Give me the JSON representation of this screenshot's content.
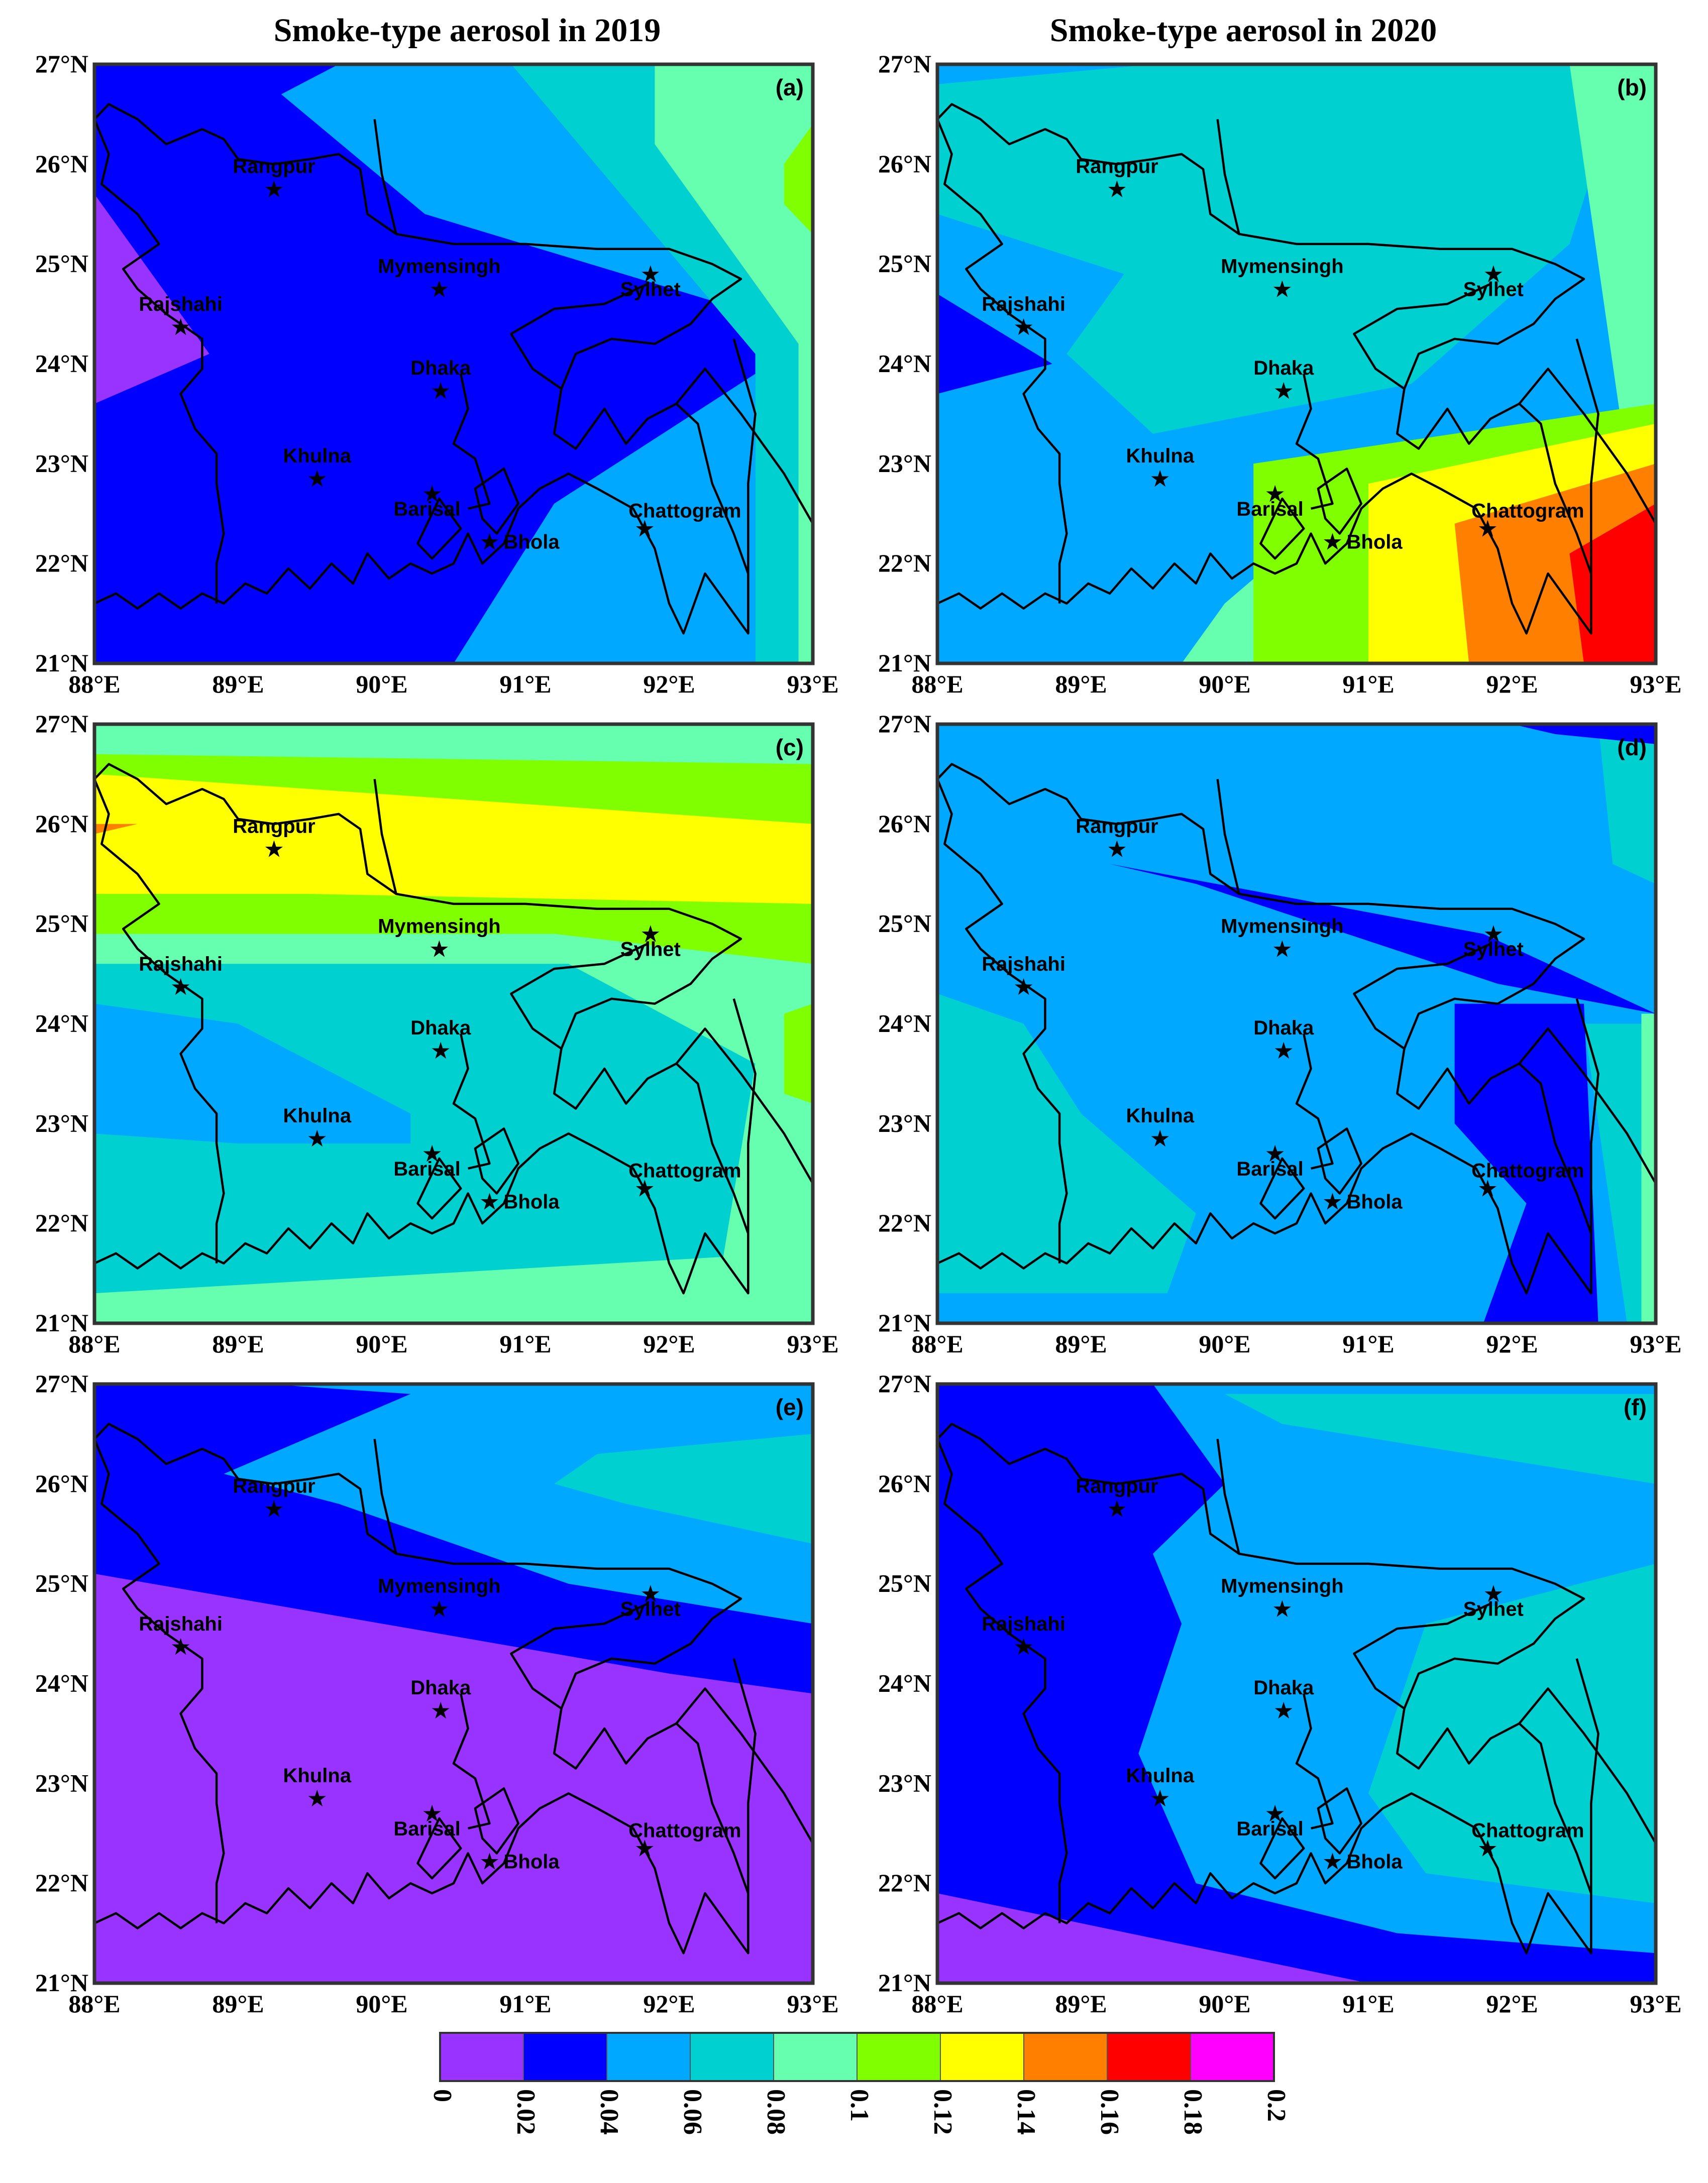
{
  "titles": {
    "col_2019": "Smoke-type aerosol in 2019",
    "col_2020": "Smoke-type aerosol in 2020"
  },
  "lat_ticks": [
    "21°N",
    "22°N",
    "23°N",
    "24°N",
    "25°N",
    "26°N",
    "27°N"
  ],
  "lon_ticks": [
    "88°E",
    "89°E",
    "90°E",
    "91°E",
    "92°E",
    "93°E"
  ],
  "extent": {
    "lon": [
      88,
      93
    ],
    "lat": [
      21,
      27
    ]
  },
  "cities": [
    {
      "name": "Rangpur",
      "lon": 89.25,
      "lat": 25.75
    },
    {
      "name": "Mymensingh",
      "lon": 90.4,
      "lat": 24.75
    },
    {
      "name": "Sylhet",
      "lon": 91.87,
      "lat": 24.9
    },
    {
      "name": "Rajshahi",
      "lon": 88.6,
      "lat": 24.37
    },
    {
      "name": "Dhaka",
      "lon": 90.41,
      "lat": 23.73
    },
    {
      "name": "Khulna",
      "lon": 89.55,
      "lat": 22.85
    },
    {
      "name": "Barisal",
      "lon": 90.35,
      "lat": 22.7
    },
    {
      "name": "Bhola",
      "lon": 90.75,
      "lat": 22.22
    },
    {
      "name": "Chattogram",
      "lon": 91.83,
      "lat": 22.35
    }
  ],
  "panels": [
    {
      "label": "(a)",
      "year": 2019,
      "background": "#0000ff",
      "layers": [
        {
          "color": "#00a8ff",
          "pts": [
            [
              89.7,
              27
            ],
            [
              90.9,
              27
            ],
            [
              92.6,
              24.1
            ],
            [
              92.6,
              21
            ],
            [
              90.5,
              21
            ],
            [
              91.2,
              22.6
            ],
            [
              92.6,
              23.9
            ],
            [
              92.6,
              24.5
            ],
            [
              90.3,
              25.5
            ],
            [
              89.3,
              26.7
            ]
          ]
        },
        {
          "color": "#00d0d0",
          "pts": [
            [
              90.9,
              27
            ],
            [
              91.9,
              27
            ],
            [
              92.3,
              25.4
            ],
            [
              92.9,
              24.2
            ],
            [
              92.9,
              21
            ],
            [
              92.6,
              21
            ],
            [
              92.6,
              24.1
            ]
          ]
        },
        {
          "color": "#66ffb0",
          "pts": [
            [
              91.9,
              27
            ],
            [
              93,
              27
            ],
            [
              93,
              21
            ],
            [
              92.9,
              21
            ],
            [
              92.9,
              24.2
            ],
            [
              92.3,
              25.4
            ],
            [
              91.9,
              26.2
            ]
          ]
        },
        {
          "color": "#80ff00",
          "pts": [
            [
              92.8,
              26
            ],
            [
              93,
              26.4
            ],
            [
              93,
              25.3
            ],
            [
              92.8,
              25.6
            ]
          ]
        },
        {
          "color": "#9933ff",
          "pts": [
            [
              88,
              25.7
            ],
            [
              88.8,
              24.1
            ],
            [
              88,
              23.6
            ]
          ]
        }
      ]
    },
    {
      "label": "(b)",
      "year": 2020,
      "background": "#00a8ff",
      "layers": [
        {
          "color": "#00d0d0",
          "pts": [
            [
              88,
              26.8
            ],
            [
              89.5,
              27
            ],
            [
              92.8,
              27
            ],
            [
              92.4,
              25.2
            ],
            [
              91.3,
              23.8
            ],
            [
              89.5,
              23.3
            ],
            [
              88.9,
              24.1
            ],
            [
              89.3,
              24.9
            ],
            [
              88,
              25.5
            ]
          ]
        },
        {
          "color": "#66ffb0",
          "pts": [
            [
              92.4,
              27
            ],
            [
              93,
              27
            ],
            [
              93,
              23.4
            ],
            [
              91.3,
              23.2
            ],
            [
              90,
              21.6
            ],
            [
              89.7,
              21
            ],
            [
              90.8,
              21
            ],
            [
              93,
              21
            ]
          ]
        },
        {
          "color": "#80ff00",
          "pts": [
            [
              90.2,
              23
            ],
            [
              93,
              23.6
            ],
            [
              93,
              22
            ],
            [
              91.3,
              21.6
            ],
            [
              91,
              21
            ],
            [
              90.2,
              21
            ]
          ]
        },
        {
          "color": "#ffff00",
          "pts": [
            [
              91,
              22.8
            ],
            [
              93,
              23.4
            ],
            [
              93,
              21
            ],
            [
              91,
              21
            ]
          ]
        },
        {
          "color": "#ff8000",
          "pts": [
            [
              91.6,
              22.4
            ],
            [
              93,
              23
            ],
            [
              93,
              21
            ],
            [
              91.7,
              21
            ]
          ]
        },
        {
          "color": "#ff0000",
          "pts": [
            [
              92.4,
              22.1
            ],
            [
              93,
              22.6
            ],
            [
              93,
              21
            ],
            [
              92.5,
              21
            ]
          ]
        },
        {
          "color": "#0000ff",
          "pts": [
            [
              88,
              24.7
            ],
            [
              88.8,
              24.0
            ],
            [
              88,
              23.7
            ]
          ]
        }
      ]
    },
    {
      "label": "(c)",
      "year": 2019,
      "background": "#00d0d0",
      "layers": [
        {
          "color": "#66ffb0",
          "pts": [
            [
              88,
              27
            ],
            [
              93,
              27
            ],
            [
              93,
              21
            ],
            [
              92.3,
              21
            ],
            [
              92.6,
              23.6
            ],
            [
              91.3,
              24.6
            ],
            [
              88,
              24.6
            ]
          ]
        },
        {
          "color": "#80ff00",
          "pts": [
            [
              88,
              26.7
            ],
            [
              93,
              26.6
            ],
            [
              93,
              24.6
            ],
            [
              91.2,
              24.9
            ],
            [
              88,
              24.9
            ]
          ]
        },
        {
          "color": "#ffff00",
          "pts": [
            [
              88,
              26.5
            ],
            [
              93,
              26.0
            ],
            [
              93,
              25.2
            ],
            [
              89.5,
              25.3
            ],
            [
              88,
              25.3
            ]
          ]
        },
        {
          "color": "#00a8ff",
          "pts": [
            [
              88,
              24.2
            ],
            [
              89,
              24.0
            ],
            [
              90.2,
              23.1
            ],
            [
              90.2,
              22.8
            ],
            [
              89,
              22.8
            ],
            [
              88,
              22.9
            ]
          ]
        },
        {
          "color": "#66ffb0",
          "pts": [
            [
              88,
              21.3
            ],
            [
              92.8,
              21.7
            ],
            [
              93,
              21.5
            ],
            [
              93,
              21
            ],
            [
              88,
              21
            ]
          ]
        },
        {
          "color": "#80ff00",
          "pts": [
            [
              92.8,
              23.3
            ],
            [
              93,
              23.2
            ],
            [
              93,
              24.2
            ],
            [
              92.8,
              24.1
            ]
          ]
        },
        {
          "color": "#ff8000",
          "pts": [
            [
              88,
              26
            ],
            [
              88.3,
              26
            ],
            [
              88,
              25.9
            ]
          ]
        }
      ]
    },
    {
      "label": "(d)",
      "year": 2020,
      "background": "#00a8ff",
      "layers": [
        {
          "color": "#00d0d0",
          "pts": [
            [
              88,
              24.3
            ],
            [
              88.6,
              24.0
            ],
            [
              89,
              23.1
            ],
            [
              89.8,
              22.1
            ],
            [
              89.6,
              21.3
            ],
            [
              88,
              21.3
            ]
          ]
        },
        {
          "color": "#00d0d0",
          "pts": [
            [
              92.6,
              27
            ],
            [
              93,
              27
            ],
            [
              93,
              25.4
            ],
            [
              92.7,
              25.6
            ]
          ]
        },
        {
          "color": "#00d0d0",
          "pts": [
            [
              92.5,
              24.0
            ],
            [
              93,
              24.0
            ],
            [
              93,
              21
            ],
            [
              92.8,
              21
            ],
            [
              92.6,
              23
            ]
          ]
        },
        {
          "color": "#0000ff",
          "pts": [
            [
              89.2,
              25.6
            ],
            [
              91.8,
              24.9
            ],
            [
              93,
              24.1
            ],
            [
              91.9,
              24.4
            ],
            [
              89.8,
              25.4
            ]
          ]
        },
        {
          "color": "#0000ff",
          "pts": [
            [
              91.6,
              24.2
            ],
            [
              92.5,
              24.2
            ],
            [
              92.6,
              21
            ],
            [
              91.8,
              21
            ],
            [
              92.1,
              22.2
            ],
            [
              91.6,
              23
            ]
          ]
        },
        {
          "color": "#0000ff",
          "pts": [
            [
              92.0,
              27
            ],
            [
              93,
              27
            ],
            [
              93,
              26.8
            ],
            [
              92.3,
              26.9
            ]
          ]
        },
        {
          "color": "#66ffb0",
          "pts": [
            [
              92.9,
              24.1
            ],
            [
              93,
              24.1
            ],
            [
              93,
              21
            ],
            [
              92.9,
              21
            ]
          ]
        }
      ]
    },
    {
      "label": "(e)",
      "year": 2019,
      "background": "#9933ff",
      "layers": [
        {
          "color": "#0000ff",
          "pts": [
            [
              88,
              27
            ],
            [
              93,
              27
            ],
            [
              93,
              23.9
            ],
            [
              92,
              24.1
            ],
            [
              88,
              25.1
            ]
          ]
        },
        {
          "color": "#00a8ff",
          "pts": [
            [
              89.2,
              27
            ],
            [
              93,
              27
            ],
            [
              93,
              24.6
            ],
            [
              91.3,
              25.0
            ],
            [
              89.7,
              25.8
            ],
            [
              88.9,
              26.1
            ],
            [
              90.2,
              26.9
            ]
          ]
        },
        {
          "color": "#00d0d0",
          "pts": [
            [
              91.5,
              26.3
            ],
            [
              93,
              26.5
            ],
            [
              93,
              25.4
            ],
            [
              91.7,
              25.8
            ],
            [
              91.2,
              26.0
            ]
          ]
        }
      ]
    },
    {
      "label": "(f)",
      "year": 2020,
      "background": "#0000ff",
      "layers": [
        {
          "color": "#00a8ff",
          "pts": [
            [
              89.5,
              27
            ],
            [
              93,
              27
            ],
            [
              93,
              21.3
            ],
            [
              91.2,
              21.5
            ],
            [
              89.8,
              22.0
            ],
            [
              89.4,
              23.3
            ],
            [
              89.7,
              24.6
            ],
            [
              89.5,
              25.3
            ],
            [
              90.0,
              26.0
            ]
          ]
        },
        {
          "color": "#00d0d0",
          "pts": [
            [
              90.0,
              26.9
            ],
            [
              93,
              26.9
            ],
            [
              93,
              26.0
            ],
            [
              90.4,
              26.6
            ]
          ]
        },
        {
          "color": "#00d0d0",
          "pts": [
            [
              91.4,
              24.6
            ],
            [
              93,
              25.2
            ],
            [
              93,
              21.8
            ],
            [
              91.4,
              22.1
            ],
            [
              91.0,
              22.9
            ]
          ]
        },
        {
          "color": "#9933ff",
          "pts": [
            [
              88,
              21.9
            ],
            [
              91.0,
              21
            ],
            [
              88,
              21
            ]
          ]
        }
      ]
    }
  ],
  "colorbar": {
    "ticks": [
      "0",
      "0.02",
      "0.04",
      "0.06",
      "0.08",
      "0.1",
      "0.12",
      "0.14",
      "0.16",
      "0.18",
      "0.2"
    ],
    "colors": [
      "#9933ff",
      "#0000ff",
      "#00a8ff",
      "#00d0d0",
      "#66ffb0",
      "#80ff00",
      "#ffff00",
      "#ff8000",
      "#ff0000",
      "#ff00ff"
    ]
  }
}
